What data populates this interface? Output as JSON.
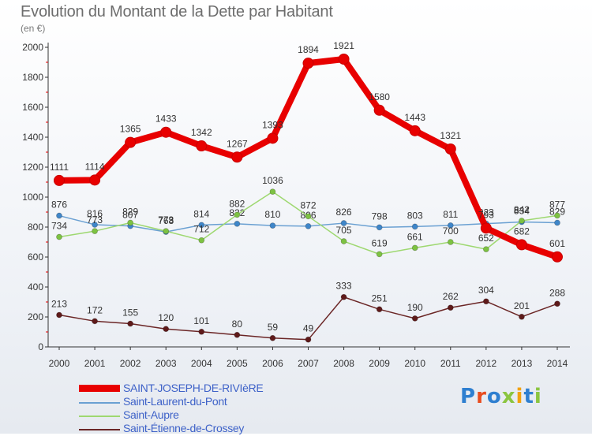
{
  "title": "Evolution du Montant de la Dette par Habitant",
  "subtitle": "(en €)",
  "logo": {
    "text": "Proxiti",
    "colors": [
      "#2e7fd0",
      "#e84c1e",
      "#2e7fd0",
      "#8bc540",
      "#f2a20f",
      "#2e7fd0",
      "#8bc540"
    ]
  },
  "chart_data": {
    "type": "line",
    "x": [
      "2000",
      "2001",
      "2002",
      "2003",
      "2004",
      "2005",
      "2006",
      "2007",
      "2008",
      "2009",
      "2010",
      "2011",
      "2012",
      "2013",
      "2014"
    ],
    "ylim": [
      0,
      2000
    ],
    "yticks": [
      0,
      200,
      400,
      600,
      800,
      1000,
      1200,
      1400,
      1600,
      1800,
      2000
    ],
    "grid": false,
    "legend_position": "bottom-left",
    "series": [
      {
        "name": "SAINT-JOSEPH-DE-RIVIèRE",
        "color": "#e80000",
        "style": "thick",
        "values": [
          1111,
          1114,
          1365,
          1433,
          1342,
          1267,
          1393,
          1894,
          1921,
          1580,
          1443,
          1321,
          793,
          682,
          601
        ],
        "labels": [
          "1111",
          "1114",
          "1365",
          "1433",
          "1342",
          "1267",
          "1393",
          "1894",
          "1921",
          "1580",
          "1443",
          "1321",
          "793",
          "682",
          "601"
        ]
      },
      {
        "name": "Saint-Laurent-du-Pont",
        "color": "#6aa0d2",
        "marker": "#3f86c9",
        "style": "thin",
        "values": [
          876,
          816,
          807,
          768,
          814,
          822,
          810,
          806,
          826,
          798,
          803,
          811,
          823,
          834,
          829
        ],
        "labels": [
          "876",
          "816",
          "807",
          "768",
          "814",
          "822",
          "810",
          "806",
          "826",
          "798",
          "803",
          "811",
          "823",
          "834",
          "829"
        ]
      },
      {
        "name": "Saint-Aupre",
        "color": "#9ed870",
        "marker": "#7dc242",
        "style": "thin",
        "values": [
          734,
          773,
          829,
          773,
          712,
          882,
          1036,
          872,
          705,
          619,
          661,
          700,
          652,
          842,
          877
        ],
        "labels": [
          "734",
          "773",
          "829",
          "773",
          "712",
          "882",
          "1036",
          "872",
          "705",
          "619",
          "661",
          "700",
          "652",
          "842",
          "877"
        ]
      },
      {
        "name": "Saint-Étienne-de-Crossey",
        "color": "#6b2626",
        "marker": "#5e1a1a",
        "style": "thin",
        "values": [
          213,
          172,
          155,
          120,
          101,
          80,
          59,
          49,
          333,
          251,
          190,
          262,
          304,
          201,
          288
        ],
        "labels": [
          "213",
          "172",
          "155",
          "120",
          "101",
          "80",
          "59",
          "49",
          "333",
          "251",
          "190",
          "262",
          "304",
          "201",
          "288"
        ]
      }
    ]
  }
}
